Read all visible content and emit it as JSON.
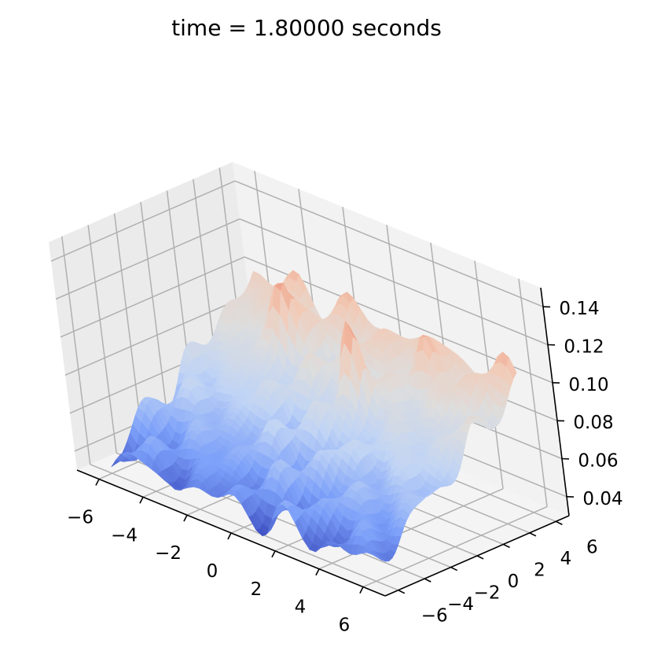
{
  "chart_data": {
    "type": "surface3d",
    "title": "time = 1.80000 seconds",
    "colormap": "coolwarm",
    "colormap_colors": [
      "#3b4cc0",
      "#7b9ff9",
      "#c0d4f5",
      "#dddddd",
      "#f2cbb7",
      "#ee8468",
      "#b40426"
    ],
    "x_ticks": [
      "−6",
      "−4",
      "−2",
      "0",
      "2",
      "4",
      "6"
    ],
    "y_ticks": [
      "−6",
      "−4",
      "−2",
      "0",
      "2",
      "4",
      "6"
    ],
    "z_ticks": [
      "0.04",
      "0.06",
      "0.08",
      "0.10",
      "0.12",
      "0.14"
    ],
    "xlim": [
      -7,
      7
    ],
    "ylim": [
      -7,
      7
    ],
    "zlim": [
      0.03,
      0.15
    ],
    "grid": true,
    "surface_range": {
      "min": 0.028,
      "max": 0.142
    },
    "peaks": [
      {
        "x": 0.8,
        "y": 2.0,
        "z": 0.14
      },
      {
        "x": -3.2,
        "y": 3.4,
        "z": 0.13
      },
      {
        "x": 2.6,
        "y": 4.6,
        "z": 0.115
      }
    ]
  }
}
